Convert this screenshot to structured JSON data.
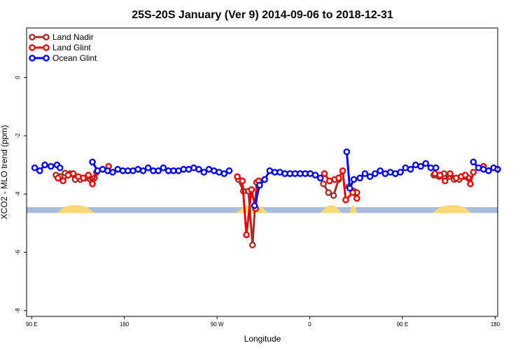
{
  "chart_data": {
    "type": "line",
    "title": "25S-20S January (Ver 9)   2014-09-06 to 2018-12-31",
    "xlabel": "Longitude",
    "ylabel": "XCO2 - MLO trend (ppm)",
    "xlim": [
      -0.05,
      4.6
    ],
    "ylim": [
      -8.2,
      1.7
    ],
    "x_ticks": [
      {
        "value": 0,
        "label": "90 E"
      },
      {
        "value": 0.915,
        "label": "180"
      },
      {
        "value": 1.83,
        "label": "90 W"
      },
      {
        "value": 2.745,
        "label": "0"
      },
      {
        "value": 3.66,
        "label": "90 E"
      },
      {
        "value": 4.575,
        "label": "180"
      }
    ],
    "y_ticks": [
      0,
      -2,
      -4,
      -6,
      -8
    ],
    "legend": {
      "position": "top-left",
      "entries": [
        "Land Nadir",
        "Land Glint",
        "Ocean Glint"
      ]
    },
    "land_band": {
      "y_range": [
        -4.65,
        -4.45
      ],
      "ocean_color": "#a7bde0",
      "land_color": "#fad877",
      "land_segments": [
        [
          0.25,
          0.62
        ],
        [
          2.02,
          2.34
        ],
        [
          2.85,
          3.06
        ],
        [
          3.14,
          3.21
        ],
        [
          3.96,
          4.34
        ]
      ]
    },
    "series": [
      {
        "name": "Land Nadir",
        "color": "#a0302a",
        "segments": [
          [
            [
              0.24,
              -3.35
            ],
            [
              0.28,
              -3.4
            ],
            [
              0.33,
              -3.28
            ],
            [
              0.38,
              -3.3
            ],
            [
              0.43,
              -3.5
            ],
            [
              0.48,
              -3.5
            ],
            [
              0.53,
              -3.45
            ],
            [
              0.58,
              -3.5
            ],
            [
              0.62,
              -3.45
            ]
          ],
          [
            [
              2.04,
              -3.5
            ],
            [
              2.09,
              -3.9
            ],
            [
              2.14,
              -3.9
            ],
            [
              2.18,
              -5.75
            ],
            [
              2.22,
              -3.6
            ]
          ],
          [
            [
              2.88,
              -3.65
            ],
            [
              2.93,
              -3.95
            ],
            [
              2.98,
              -4.05
            ],
            [
              3.03,
              -3.5
            ]
          ],
          [
            [
              3.13,
              -3.75
            ],
            [
              3.18,
              -3.9
            ],
            [
              3.21,
              -3.95
            ]
          ],
          [
            [
              3.97,
              -3.35
            ],
            [
              4.02,
              -3.4
            ],
            [
              4.07,
              -3.3
            ],
            [
              4.12,
              -3.4
            ],
            [
              4.17,
              -3.5
            ],
            [
              4.22,
              -3.5
            ],
            [
              4.27,
              -3.4
            ],
            [
              4.31,
              -3.45
            ]
          ]
        ]
      },
      {
        "name": "Land Glint",
        "color": "#ee0000",
        "segments": [
          [
            [
              0.26,
              -3.45
            ],
            [
              0.31,
              -3.55
            ],
            [
              0.36,
              -3.35
            ],
            [
              0.41,
              -3.3
            ],
            [
              0.46,
              -3.4
            ],
            [
              0.51,
              -3.45
            ],
            [
              0.56,
              -3.35
            ],
            [
              0.6,
              -3.65
            ],
            [
              0.64,
              -3.25
            ]
          ],
          [
            [
              0.76,
              -3.05
            ]
          ],
          [
            [
              2.03,
              -3.4
            ],
            [
              2.08,
              -3.55
            ],
            [
              2.12,
              -5.4
            ],
            [
              2.17,
              -3.85
            ],
            [
              2.21,
              -4.5
            ],
            [
              2.24,
              -3.55
            ]
          ],
          [
            [
              2.89,
              -3.3
            ],
            [
              2.94,
              -3.55
            ],
            [
              2.99,
              -3.5
            ],
            [
              3.03,
              -3.45
            ],
            [
              3.07,
              -3.2
            ],
            [
              3.1,
              -4.2
            ],
            [
              3.17,
              -3.95
            ],
            [
              3.21,
              -4.15
            ]
          ],
          [
            [
              3.98,
              -3.3
            ],
            [
              4.03,
              -3.35
            ],
            [
              4.08,
              -3.55
            ],
            [
              4.13,
              -3.3
            ],
            [
              4.19,
              -3.45
            ],
            [
              4.24,
              -3.4
            ],
            [
              4.28,
              -3.35
            ],
            [
              4.33,
              -3.65
            ],
            [
              4.36,
              -3.25
            ]
          ],
          [
            [
              4.46,
              -3.05
            ]
          ]
        ]
      },
      {
        "name": "Ocean Glint",
        "color": "#0000ee",
        "segments": [
          [
            [
              0.03,
              -3.1
            ],
            [
              0.08,
              -3.2
            ],
            [
              0.13,
              -3.0
            ],
            [
              0.19,
              -3.05
            ],
            [
              0.25,
              -3.0
            ],
            [
              0.28,
              -3.1
            ]
          ],
          [
            [
              0.6,
              -2.9
            ],
            [
              0.65,
              -3.2
            ],
            [
              0.7,
              -3.15
            ],
            [
              0.75,
              -3.2
            ],
            [
              0.8,
              -3.25
            ],
            [
              0.85,
              -3.15
            ],
            [
              0.9,
              -3.2
            ],
            [
              0.95,
              -3.2
            ],
            [
              1.0,
              -3.2
            ],
            [
              1.05,
              -3.15
            ],
            [
              1.1,
              -3.2
            ],
            [
              1.15,
              -3.1
            ],
            [
              1.2,
              -3.2
            ],
            [
              1.25,
              -3.2
            ],
            [
              1.3,
              -3.1
            ],
            [
              1.35,
              -3.2
            ],
            [
              1.4,
              -3.2
            ],
            [
              1.45,
              -3.2
            ],
            [
              1.5,
              -3.15
            ],
            [
              1.55,
              -3.15
            ],
            [
              1.6,
              -3.1
            ],
            [
              1.65,
              -3.15
            ],
            [
              1.7,
              -3.25
            ],
            [
              1.75,
              -3.15
            ],
            [
              1.8,
              -3.2
            ],
            [
              1.85,
              -3.25
            ],
            [
              1.9,
              -3.3
            ],
            [
              1.95,
              -3.2
            ]
          ],
          [
            [
              2.2,
              -4.4
            ],
            [
              2.25,
              -3.7
            ],
            [
              2.3,
              -3.5
            ],
            [
              2.35,
              -3.2
            ],
            [
              2.4,
              -3.25
            ],
            [
              2.45,
              -3.25
            ],
            [
              2.5,
              -3.3
            ],
            [
              2.55,
              -3.3
            ],
            [
              2.6,
              -3.3
            ],
            [
              2.65,
              -3.3
            ],
            [
              2.7,
              -3.3
            ],
            [
              2.75,
              -3.3
            ],
            [
              2.8,
              -3.35
            ],
            [
              2.85,
              -3.45
            ]
          ],
          [
            [
              3.11,
              -2.55
            ],
            [
              3.14,
              -3.8
            ],
            [
              3.18,
              -3.5
            ],
            [
              3.24,
              -3.45
            ],
            [
              3.29,
              -3.3
            ],
            [
              3.34,
              -3.4
            ],
            [
              3.39,
              -3.3
            ],
            [
              3.44,
              -3.2
            ],
            [
              3.49,
              -3.3
            ],
            [
              3.54,
              -3.25
            ],
            [
              3.59,
              -3.3
            ],
            [
              3.64,
              -3.25
            ],
            [
              3.69,
              -3.1
            ],
            [
              3.74,
              -3.15
            ],
            [
              3.79,
              -3.0
            ],
            [
              3.84,
              -3.05
            ],
            [
              3.89,
              -2.95
            ],
            [
              3.94,
              -3.1
            ],
            [
              3.99,
              -3.1
            ]
          ],
          [
            [
              4.36,
              -2.9
            ],
            [
              4.41,
              -3.1
            ],
            [
              4.46,
              -3.15
            ],
            [
              4.51,
              -3.2
            ],
            [
              4.56,
              -3.1
            ],
            [
              4.6,
              -3.15
            ]
          ]
        ]
      }
    ]
  }
}
